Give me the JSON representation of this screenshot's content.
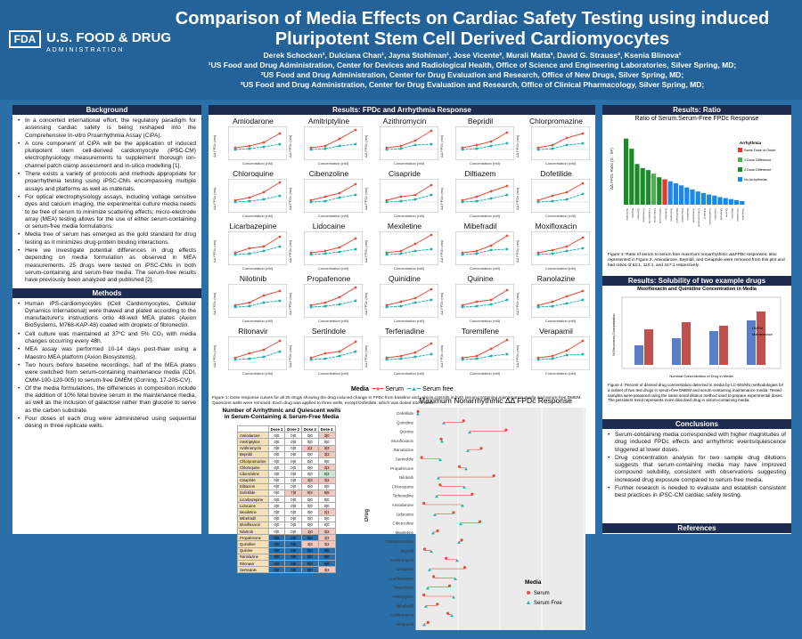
{
  "header": {
    "logo_mark": "FDA",
    "logo_name": "U.S. FOOD & DRUG",
    "logo_sub": "ADMINISTRATION",
    "title": "Comparison of Media Effects on Cardiac Safety Testing using induced Pluripotent Stem Cell Derived Cardiomyocytes",
    "authors": "Derek Schocken¹, Dulciana Chan¹, Jayna Stohlman¹, Jose Vicente², Murali Matta³, David G. Strauss³, Ksenia Blinova¹",
    "aff1": "¹US Food and Drug Administration, Center for Devices and Radiological Health, Office of Science and Engineering Laboratories, Silver Spring, MD;",
    "aff2": "²US Food and Drug Administration, Center for Drug Evaluation and Research, Office of New Drugs, Silver Spring, MD;",
    "aff3": "³US Food and Drug Administration, Center for Drug Evaluation and Research, Office of Clinical Pharmacology, Silver Spring, MD;"
  },
  "background": {
    "title": "Background",
    "items": [
      "In a concerted international effort, the regulatory paradigm for assessing cardiac safety is being reshaped into the Comprehensive In-vitro Proarrhythmia Assay (CiPA).",
      "A core component of CiPA will be the application of induced pluripotent stem cell-derived cardiomyocyte (iPSC-CM) electrophysiology measurements to supplement thorough ion-channel patch clamp assessment and in-silico modelling [1].",
      "There exists a variety of protocols and methods appropriate for proarrhythmia testing using iPSC-CMs encompassing multiple assays and platforms as well as materials.",
      "For optical electrophysiology assays, including voltage sensitive dyes and calcium imaging, the experimental culture media needs to be free of serum to minimize scattering effects; micro-electrode array (MEA) testing allows for the use of either serum-containing or serum-free media formulations.",
      "Media free of serum has emerged as the gold standard for drug testing as it minimizes drug-protein binding interactions.",
      "Here we investigate potential differences in drug effects depending on media formulation as observed in MEA measurements. 25 drugs were tested on iPSC-CMs in both serum-containing and serum-free media. The serum-free results have previously been analyzed and published [2]."
    ]
  },
  "methods": {
    "title": "Methods",
    "items": [
      "Human iPS-cardiomyocytes (iCell Cardiomyocytes, Cellular Dynamics International) were thawed and plated according to the manufacturer's instructions onto 48-well MEA plates (Axion BioSystems, M768-KAP-48) coated with droplets of fibronectin.",
      "Cell culture was maintained at 37ºC and 5% CO₂ with media changes occurring every 48h.",
      "MEA assay was performed 10-14 days post-thaw using a Maestro MEA platform (Axion Biosystems).",
      "Two hours before baseline recordings, half of the MEA plates were switched from serum-containing maintenance media (CDI, CMM-100-120-005) to serum-free DMEM (Corning, 17-205-CV).",
      "Of the media formulations, the differences in composition include the addition of 10% fetal bovine serum in the maintenance media, as well as the inclusion of galactose rather than glucose to serve as the carbon substrate.",
      "Four doses of each drug were administered using sequential dosing in three replicate wells."
    ]
  },
  "results_fpd": {
    "title": "Results: FPDc and Arrhythmia Response",
    "ylab": "ΔΔ FPDc (ms)",
    "xlab": "Concentration (nM)",
    "drugs": [
      "Amiodarone",
      "Amitriptyline",
      "Azithromycin",
      "Bepridil",
      "Chlorpromazine",
      "Chloroquine",
      "Cibenzoline",
      "Cisapride",
      "Diltiazem",
      "Dofetilide",
      "Licarbazepine",
      "Lidocaine",
      "Mexiletine",
      "Mibefradil",
      "Moxifloxacin",
      "Nilotinib",
      "Propafenone",
      "Quinidine",
      "Quinine",
      "Ranolazine",
      "Ritonavir",
      "Sertindole",
      "Terfenadine",
      "Toremifene",
      "Verapamil"
    ],
    "legend_title": "Media",
    "legend_serum": "Serum",
    "legend_free": "Serum free",
    "fig1_caption": "Figure 1: Dose response curves for all 25 drugs showing the drug induced change in FPDc from baseline and vehicle controls in both serum-containing maintenance media and serum-free DMEM. Quiescent wells were removed. Each drug was applied to three wells, except Dofetilide, which was dosed into 9 wells.",
    "table_title": "Number of Arrhythmic and Quiescent wells in Serum-Containing & Serum-Free Media",
    "table_headers": [
      "",
      "Dose 1",
      "Dose 2",
      "Dose 3",
      "Dose 4"
    ],
    "table_rows": [
      [
        "Amiodarone",
        "0|0",
        "0|0",
        "0|0",
        "3|0"
      ],
      [
        "Amitriptyline",
        "0|0",
        "0|0",
        "0|0",
        "0|0"
      ],
      [
        "Azithromycin",
        "0|0",
        "0|0",
        "2|1",
        "3|3"
      ],
      [
        "Bepridil",
        "0|0",
        "0|0",
        "0|0",
        "3|3"
      ],
      [
        "Chlorpromazine",
        "0|0",
        "0|0",
        "0|0",
        "0|0"
      ],
      [
        "Chloroquine",
        "0|0",
        "0|0",
        "0|0",
        "3|3"
      ],
      [
        "Cibenzoline",
        "0|0",
        "0|0",
        "0|0",
        "0|3"
      ],
      [
        "Cisapride",
        "0|0",
        "0|0",
        "3|3",
        "3|3"
      ],
      [
        "Diltiazem",
        "0|0",
        "0|0",
        "0|0",
        "0|0"
      ],
      [
        "Dofetilide",
        "0|0",
        "7|0",
        "9|4",
        "9|9"
      ],
      [
        "Licarbazepine",
        "0|0",
        "0|0",
        "0|0",
        "0|0"
      ],
      [
        "Lidocaine",
        "0|0",
        "0|0",
        "0|0",
        "0|0"
      ],
      [
        "Mexiletine",
        "0|0",
        "0|0",
        "0|0",
        "2|1"
      ],
      [
        "Mibefradil",
        "0|0",
        "0|0",
        "0|0",
        "0|0"
      ],
      [
        "Moxifloxacin",
        "0|0",
        "0|0",
        "0|0",
        "0|0"
      ],
      [
        "Nilotinib",
        "0|0",
        "0|0",
        "1|0",
        "3|3"
      ],
      [
        "Propafenone",
        "0|0",
        "0|0",
        "0|0",
        "3|3"
      ],
      [
        "Quinidine",
        "0|0",
        "0|0",
        "3|3",
        "3|3"
      ],
      [
        "Quinine",
        "0|0",
        "0|0",
        "0|0",
        "0|0"
      ],
      [
        "Ranolazine",
        "0|0",
        "0|0",
        "0|0",
        "0|0"
      ],
      [
        "Ritonavir",
        "0|0",
        "0|0",
        "0|0",
        "0|0"
      ],
      [
        "Sertindole",
        "0|0",
        "0|0",
        "0|0",
        "3|3"
      ]
    ],
    "hbar_title": "Maximum Nonarrhythmic ΔΔ FPDc Response",
    "hbar_ylab": "Drug",
    "hbar_legend_title": "Media",
    "hbar_legend_serum": "Serum",
    "hbar_legend_free": "Serum Free"
  },
  "ratio": {
    "title": "Results: Ratio",
    "chart_title": "Ratio of Serum:Serum-Free FPDc Response",
    "legend_title": "Arrhythmia",
    "legend_items": [
      "Same Dose of Onset",
      "1 Dose Difference",
      "2 Dose Difference",
      "No Arrhythmias"
    ],
    "ylab": "ΔΔ FPDc Ratio (S : SF)",
    "caption": "Figure 3: Ratio of serum to serum free maximum nonarrhythmic ΔΔFPDc responses, also represented in Figure 2. Amiodarone, Bepridil, and Cisapride were removed from this plot and had ratios of 62:1, 110:1, and 417:1 respectively."
  },
  "solubility": {
    "title": "Results: Solubility of two example drugs",
    "chart_title": "Moxifloxacin and Quinidine Concentration in Media",
    "legend": [
      "DMEM",
      "Maintenance"
    ],
    "ylab": "% Recovered Concentration",
    "xlab": "Nominal Concentration of Drug in Media",
    "caption": "Figure 4: Percent of desired drug concentration detected in media by LC-MS/MS methodologies for a subset of two test drugs in serum-free DMEM and serum-containing maintenance media. Tested samples were prepared using the same serial dilution method used to prepare experimental doses. The persistent trend represents more dissolved drug in serum-containing media."
  },
  "conclusions": {
    "title": "Conclusions",
    "items": [
      "Serum-containing media corresponded with higher magnitudes of drug induced FPDc effects and arrhythmic events/quiescence triggered at lower doses.",
      "Drug concentration analysis for two sample drug dilutions suggests that serum-containing media may have improved compound solubility, consistent with observations suggesting increased drug exposure compared to serum-free media.",
      "Further research is needed to evaluate and establish consistent best practices in iPSC-CM cardiac safety testing."
    ]
  },
  "references": {
    "title": "References"
  },
  "colors": {
    "serum": "#e74c3c",
    "free": "#20b2aa",
    "header": "#24639a",
    "section": "#1d2c4e"
  }
}
